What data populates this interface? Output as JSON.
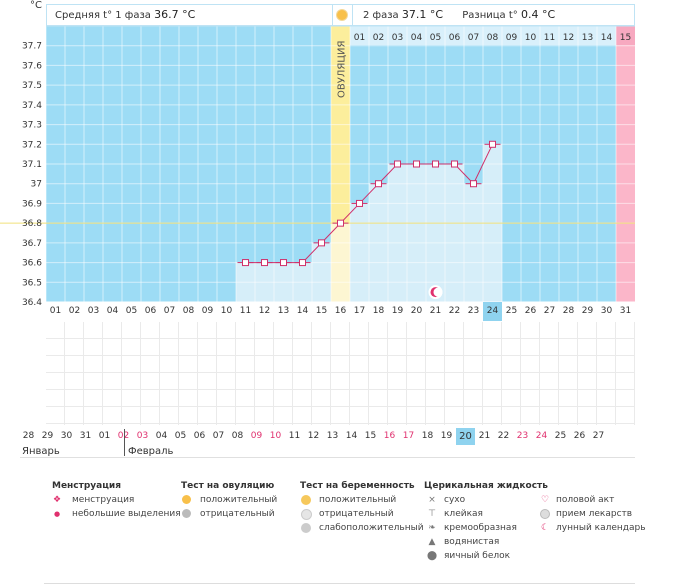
{
  "header": {
    "unit": "°C",
    "phase1_label": "Средняя t° 1 фаза",
    "phase1_value": "36.7 °C",
    "phase2_label": "2 фаза",
    "phase2_value": "37.1 °C",
    "diff_label": "Разница t°",
    "diff_value": "0.4 °C"
  },
  "colors": {
    "phase_bg": "#9ddcf5",
    "fill": "#d6eef9",
    "line": "#d0306a",
    "ovulation": "#fcee9c",
    "menstruation": "#fbb6c9",
    "coverline": "#f0e07a",
    "highlight": "#8fd3ef"
  },
  "ovulation_label": "ОВУЛЯЦИЯ",
  "top_labels": [
    "01",
    "02",
    "03",
    "04",
    "05",
    "06",
    "07",
    "08",
    "09",
    "10",
    "11",
    "12",
    "13",
    "14",
    "15"
  ],
  "cycle_days": [
    "01",
    "02",
    "03",
    "04",
    "05",
    "06",
    "07",
    "08",
    "09",
    "10",
    "11",
    "12",
    "13",
    "14",
    "15",
    "16",
    "17",
    "18",
    "19",
    "20",
    "21",
    "22",
    "23",
    "24",
    "25",
    "26",
    "27",
    "28",
    "29",
    "30",
    "31"
  ],
  "highlight_day": "24",
  "dates": [
    {
      "d": "28",
      "red": false
    },
    {
      "d": "29",
      "red": false
    },
    {
      "d": "30",
      "red": false
    },
    {
      "d": "31",
      "red": false
    },
    {
      "d": "01",
      "red": false
    },
    {
      "d": "02",
      "red": true
    },
    {
      "d": "03",
      "red": true
    },
    {
      "d": "04",
      "red": false
    },
    {
      "d": "05",
      "red": false
    },
    {
      "d": "06",
      "red": false
    },
    {
      "d": "07",
      "red": false
    },
    {
      "d": "08",
      "red": false
    },
    {
      "d": "09",
      "red": true
    },
    {
      "d": "10",
      "red": true
    },
    {
      "d": "11",
      "red": false
    },
    {
      "d": "12",
      "red": false
    },
    {
      "d": "13",
      "red": false
    },
    {
      "d": "14",
      "red": false
    },
    {
      "d": "15",
      "red": false
    },
    {
      "d": "16",
      "red": true
    },
    {
      "d": "17",
      "red": true
    },
    {
      "d": "18",
      "red": false
    },
    {
      "d": "19",
      "red": false
    },
    {
      "d": "20",
      "red": false
    },
    {
      "d": "21",
      "red": false
    },
    {
      "d": "22",
      "red": false
    },
    {
      "d": "23",
      "red": true
    },
    {
      "d": "24",
      "red": true
    },
    {
      "d": "25",
      "red": false
    },
    {
      "d": "26",
      "red": false
    },
    {
      "d": "27",
      "red": false
    }
  ],
  "month_left": "Январь",
  "month_right": "Февраль",
  "chart_data": {
    "type": "line",
    "ylabel": "°C",
    "ylim": [
      36.4,
      37.8
    ],
    "y_ticks": [
      37.7,
      37.6,
      37.5,
      37.4,
      37.3,
      37.2,
      37.1,
      37.0,
      36.9,
      36.8,
      36.7,
      36.6,
      36.5,
      36.4
    ],
    "y_tick_labels": [
      "37.7",
      "37.6",
      "37.5",
      "37.4",
      "37.3",
      "37.2",
      "37.1",
      "37",
      "36.9",
      "36.8",
      "36.7",
      "36.6",
      "36.5",
      "36.4"
    ],
    "x": [
      11,
      12,
      13,
      14,
      15,
      16,
      17,
      18,
      19,
      20,
      21,
      22,
      23,
      24
    ],
    "series": [
      {
        "values": [
          36.6,
          36.6,
          36.6,
          36.6,
          36.7,
          36.8,
          36.9,
          37.0,
          37.1,
          37.1,
          37.1,
          37.1,
          37.0,
          37.2
        ]
      }
    ],
    "coverline": 36.8,
    "ovulation_day": 16,
    "menstruation_day": 31,
    "moon_day": 21,
    "grid": true
  },
  "legend": {
    "menstr_title": "Менструация",
    "menstr_items": [
      "менструация",
      "небольшие выделения"
    ],
    "ovu_title": "Тест на овуляцию",
    "ovu_items": [
      "положительный",
      "отрицательный"
    ],
    "preg_title": "Тест на беременность",
    "preg_items": [
      "положительный",
      "отрицательный",
      "слабоположительный"
    ],
    "cerv_title": "Церикальная жидкость",
    "cerv_items": [
      "сухо",
      "клейкая",
      "кремообразная",
      "водянистая",
      "яичный белок"
    ],
    "other_items": [
      "половой акт",
      "прием лекарств",
      "лунный календарь"
    ]
  }
}
